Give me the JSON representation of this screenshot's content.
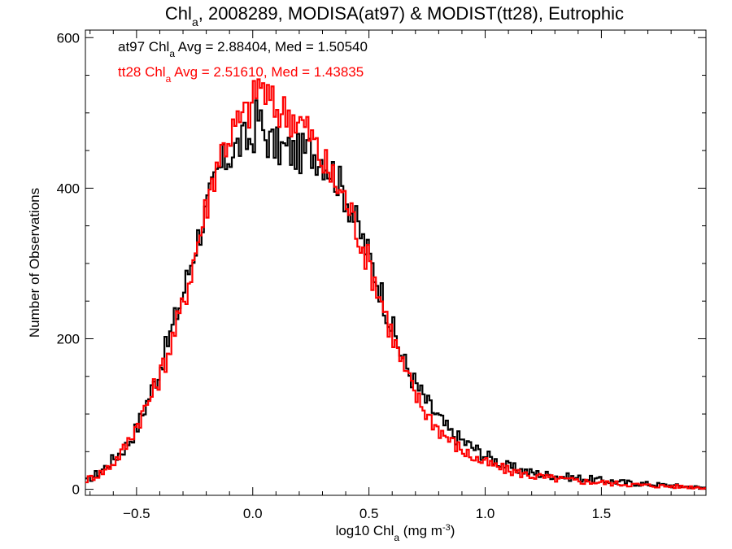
{
  "chart_data": {
    "type": "line",
    "title": {
      "main": "Chl",
      "main_sub": "a",
      "rest": ", 2008289, MODISA(at97) & MODIST(tt28), Eutrophic"
    },
    "xlabel": {
      "pre": "log10 Chl",
      "sub": "a",
      "post": " (mg m",
      "sup": "-3",
      "close": ")"
    },
    "ylabel": "Number of Observations",
    "xlim": [
      -0.72,
      1.95
    ],
    "ylim": [
      -8,
      610
    ],
    "x_ticks": [
      -0.5,
      0.0,
      0.5,
      1.0,
      1.5
    ],
    "x_tick_labels": [
      "−0.5",
      "0.0",
      "0.5",
      "1.0",
      "1.5"
    ],
    "y_ticks": [
      0,
      200,
      400,
      600
    ],
    "y_tick_labels": [
      "0",
      "200",
      "400",
      "600"
    ],
    "legend": [
      {
        "prefix": "at97 Chl",
        "sub": "a",
        "text": " Avg = 2.88404, Med = 1.50540",
        "color": "#000000"
      },
      {
        "prefix": "tt28 Chl",
        "sub": "a",
        "text": " Avg = 2.51610, Med = 1.43835",
        "color": "#ff0000"
      }
    ],
    "series": [
      {
        "key": "at97",
        "color": "#000000",
        "x": [
          -0.72,
          -0.65,
          -0.6,
          -0.55,
          -0.5,
          -0.45,
          -0.4,
          -0.35,
          -0.3,
          -0.25,
          -0.2,
          -0.15,
          -0.1,
          -0.05,
          0.0,
          0.02,
          0.05,
          0.08,
          0.1,
          0.15,
          0.2,
          0.25,
          0.3,
          0.35,
          0.4,
          0.45,
          0.5,
          0.55,
          0.6,
          0.65,
          0.7,
          0.75,
          0.8,
          0.85,
          0.9,
          0.95,
          1.0,
          1.1,
          1.2,
          1.3,
          1.4,
          1.5,
          1.6,
          1.7,
          1.8,
          1.9,
          1.95
        ],
        "y": [
          10,
          25,
          40,
          55,
          80,
          120,
          160,
          210,
          260,
          320,
          370,
          420,
          445,
          460,
          465,
          500,
          470,
          460,
          455,
          450,
          445,
          450,
          440,
          420,
          390,
          350,
          310,
          265,
          215,
          170,
          140,
          115,
          95,
          75,
          65,
          55,
          45,
          30,
          22,
          18,
          15,
          12,
          9,
          7,
          5,
          3,
          2
        ]
      },
      {
        "key": "tt28",
        "color": "#ff0000",
        "x": [
          -0.72,
          -0.65,
          -0.6,
          -0.55,
          -0.5,
          -0.45,
          -0.4,
          -0.35,
          -0.3,
          -0.25,
          -0.2,
          -0.15,
          -0.1,
          -0.05,
          0.0,
          0.02,
          0.05,
          0.08,
          0.1,
          0.15,
          0.2,
          0.25,
          0.3,
          0.35,
          0.4,
          0.45,
          0.5,
          0.55,
          0.6,
          0.65,
          0.7,
          0.75,
          0.8,
          0.85,
          0.9,
          0.95,
          1.0,
          1.1,
          1.2,
          1.3,
          1.4,
          1.5,
          1.6,
          1.7,
          1.8,
          1.9,
          1.95
        ],
        "y": [
          12,
          22,
          35,
          55,
          85,
          115,
          150,
          195,
          245,
          310,
          375,
          440,
          470,
          490,
          510,
          540,
          530,
          510,
          505,
          500,
          490,
          470,
          435,
          410,
          385,
          345,
          300,
          255,
          205,
          160,
          125,
          100,
          80,
          65,
          52,
          42,
          35,
          25,
          18,
          14,
          11,
          9,
          7,
          5,
          4,
          3,
          2
        ]
      }
    ]
  }
}
